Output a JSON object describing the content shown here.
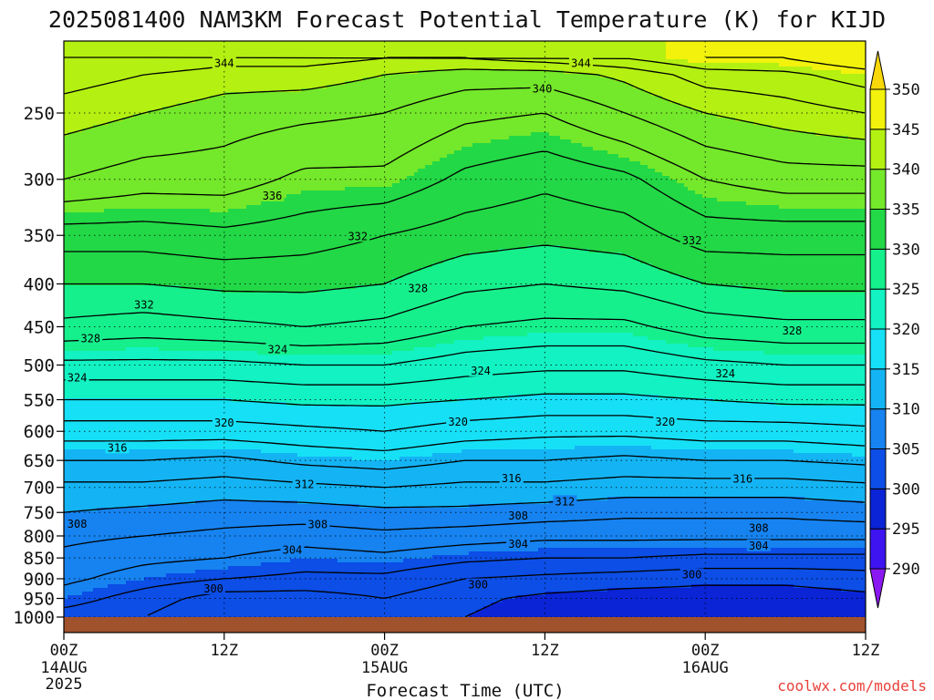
{
  "title": "2025081400 NAM3KM Forecast Potential Temperature (K) for KIJD",
  "xlabel": "Forecast Time (UTC)",
  "credit": "coolwx.com/models",
  "colors": {
    "ground": "#a0522d",
    "contour": "#000000"
  },
  "chart_data": {
    "type": "heatmap",
    "title": "2025081400 NAM3KM Forecast Potential Temperature (K) for KIJD",
    "xlabel": "Forecast Time (UTC)",
    "ylabel": "",
    "x_ticks": [
      {
        "hour": 0,
        "line1": "00Z",
        "line2": "14AUG",
        "line3": "2025"
      },
      {
        "hour": 12,
        "line1": "12Z",
        "line2": "",
        "line3": ""
      },
      {
        "hour": 24,
        "line1": "00Z",
        "line2": "15AUG",
        "line3": ""
      },
      {
        "hour": 36,
        "line1": "12Z",
        "line2": "",
        "line3": ""
      },
      {
        "hour": 48,
        "line1": "00Z",
        "line2": "16AUG",
        "line3": ""
      },
      {
        "hour": 60,
        "line1": "12Z",
        "line2": "",
        "line3": ""
      }
    ],
    "xlim_hours": [
      0,
      60
    ],
    "y_axis": "pressure (hPa)",
    "y_scale": "log",
    "ylim": [
      1025,
      200
    ],
    "y_ticks": [
      250,
      300,
      350,
      400,
      450,
      500,
      550,
      600,
      650,
      700,
      750,
      800,
      850,
      900,
      950,
      1000
    ],
    "ground_level_hPa": 1000,
    "grid": "dotted",
    "colorbar": {
      "levels": [
        290,
        295,
        300,
        305,
        310,
        315,
        320,
        325,
        330,
        335,
        340,
        345,
        350
      ],
      "labels": [
        "350",
        "345",
        "340",
        "335",
        "330",
        "325",
        "320",
        "315",
        "310",
        "305",
        "300",
        "295",
        "290"
      ],
      "colors": [
        "#8a18f0",
        "#3e14f0",
        "#0a24d6",
        "#0c4ee6",
        "#1683f0",
        "#14b4f4",
        "#16e0f6",
        "#12f2c2",
        "#16f08c",
        "#22d846",
        "#74e82a",
        "#b4f012",
        "#f2f20c",
        "#f8d80a"
      ],
      "placement": "right"
    },
    "profiles": {
      "hours": [
        0,
        6,
        12,
        18,
        24,
        30,
        36,
        42,
        48,
        54,
        60
      ],
      "p_hPa": [
        1000,
        950,
        900,
        850,
        800,
        750,
        700,
        650,
        600,
        550,
        500,
        450,
        400,
        350,
        300,
        250,
        225,
        215
      ],
      "theta_K": [
        [
          303,
          305,
          306.5,
          307.5,
          308.5,
          310,
          311.5,
          314,
          317,
          320,
          323.5,
          327.5,
          330,
          333,
          338,
          341,
          343,
          344
        ],
        [
          302,
          303,
          305,
          306.5,
          308,
          309.5,
          311.5,
          314,
          317,
          320,
          323.5,
          327,
          330,
          333,
          337,
          340,
          342,
          344
        ],
        [
          300,
          301,
          304,
          306,
          307.5,
          309,
          311,
          313.5,
          317,
          320,
          323.5,
          327.5,
          330.5,
          333.5,
          337,
          339,
          341,
          343
        ],
        [
          302,
          301,
          303.5,
          305,
          307,
          309,
          311.5,
          314.5,
          317.5,
          320.5,
          324,
          328,
          330.5,
          333,
          335.5,
          338.5,
          341,
          343
        ],
        [
          301,
          302,
          303.5,
          305.5,
          307.5,
          309.5,
          312,
          315,
          318,
          320.5,
          324,
          327.5,
          330,
          332,
          335.5,
          338,
          340,
          342
        ],
        [
          300,
          300.5,
          302,
          304.5,
          307,
          309.5,
          311.5,
          314,
          317,
          320,
          323,
          326,
          328.5,
          331,
          333.5,
          336.5,
          339,
          342
        ],
        [
          299,
          299.5,
          301.5,
          304,
          306.5,
          309,
          311.5,
          314,
          316.5,
          319.5,
          322.5,
          325.5,
          328,
          330.5,
          332.5,
          336,
          339,
          343
        ],
        [
          298,
          299,
          301,
          304,
          306.5,
          308.5,
          311,
          313.5,
          316.5,
          319.5,
          322.5,
          325.5,
          328.5,
          331,
          333.5,
          338,
          340.5,
          344
        ],
        [
          298.5,
          299,
          300.5,
          303.5,
          306.5,
          308.5,
          311,
          314,
          317,
          320,
          323.5,
          327,
          330,
          333,
          336,
          340,
          343,
          346
        ],
        [
          298.5,
          299,
          300.5,
          303.5,
          306.5,
          308.5,
          311,
          314,
          317,
          320.5,
          324,
          327.5,
          330.5,
          333,
          337,
          341,
          343.5,
          346
        ],
        [
          298.5,
          299.5,
          301,
          303.5,
          306.5,
          309,
          311.5,
          314.5,
          317.5,
          320.5,
          324,
          327.5,
          330.5,
          333,
          337,
          342,
          345,
          348
        ]
      ]
    },
    "contour_levels": [
      296,
      298,
      300,
      302,
      304,
      306,
      308,
      310,
      312,
      314,
      316,
      318,
      320,
      322,
      324,
      326,
      328,
      330,
      332,
      334,
      336,
      338,
      340,
      342,
      344,
      346
    ],
    "contour_labels": [
      {
        "text": "344",
        "hour": 12,
        "p": 218
      },
      {
        "text": "344",
        "hour": 38.7,
        "p": 218
      },
      {
        "text": "340",
        "hour": 35.8,
        "p": 234
      },
      {
        "text": "336",
        "hour": 15.6,
        "p": 314
      },
      {
        "text": "332",
        "hour": 22,
        "p": 351
      },
      {
        "text": "332",
        "hour": 47,
        "p": 355
      },
      {
        "text": "332",
        "hour": 6,
        "p": 424
      },
      {
        "text": "328",
        "hour": 26.5,
        "p": 405
      },
      {
        "text": "328",
        "hour": 54.5,
        "p": 455
      },
      {
        "text": "328",
        "hour": 2,
        "p": 465
      },
      {
        "text": "324",
        "hour": 16,
        "p": 479
      },
      {
        "text": "324",
        "hour": 31.2,
        "p": 508
      },
      {
        "text": "324",
        "hour": 49.5,
        "p": 512
      },
      {
        "text": "324",
        "hour": 1,
        "p": 518
      },
      {
        "text": "320",
        "hour": 12,
        "p": 586
      },
      {
        "text": "320",
        "hour": 29.5,
        "p": 585
      },
      {
        "text": "320",
        "hour": 45,
        "p": 585
      },
      {
        "text": "316",
        "hour": 4,
        "p": 628
      },
      {
        "text": "316",
        "hour": 33.5,
        "p": 683
      },
      {
        "text": "316",
        "hour": 50.8,
        "p": 684
      },
      {
        "text": "312",
        "hour": 18,
        "p": 694
      },
      {
        "text": "312",
        "hour": 37.5,
        "p": 728
      },
      {
        "text": "308",
        "hour": 1,
        "p": 774
      },
      {
        "text": "308",
        "hour": 19,
        "p": 775
      },
      {
        "text": "308",
        "hour": 34,
        "p": 757
      },
      {
        "text": "308",
        "hour": 52,
        "p": 783
      },
      {
        "text": "304",
        "hour": 17.1,
        "p": 832
      },
      {
        "text": "304",
        "hour": 34,
        "p": 818
      },
      {
        "text": "304",
        "hour": 52,
        "p": 822
      },
      {
        "text": "300",
        "hour": 11.2,
        "p": 925
      },
      {
        "text": "300",
        "hour": 31,
        "p": 915
      },
      {
        "text": "300",
        "hour": 47,
        "p": 890
      }
    ]
  }
}
